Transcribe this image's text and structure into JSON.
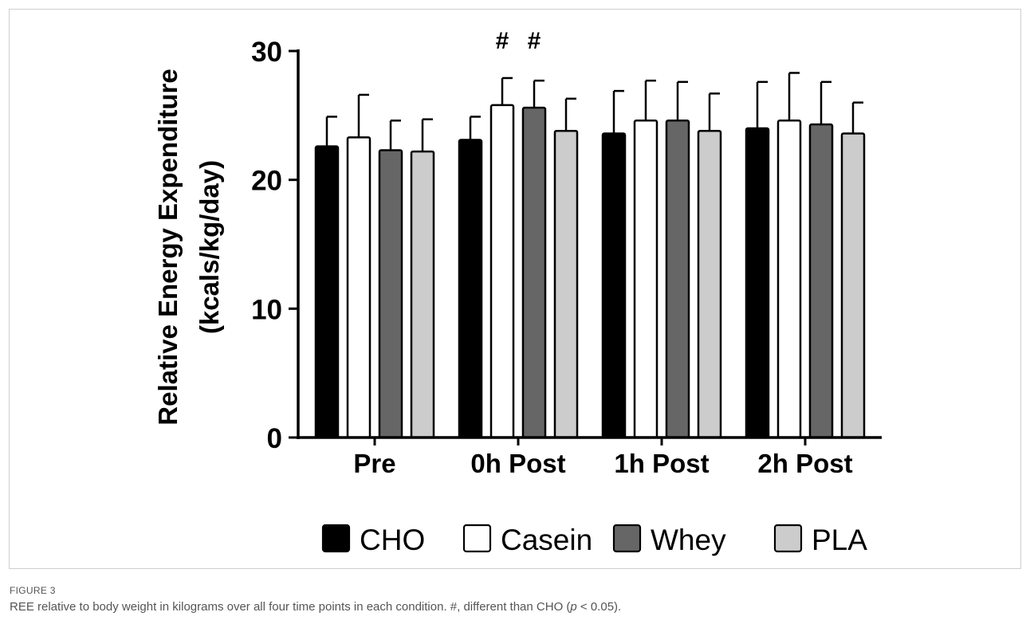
{
  "chart_data": {
    "type": "bar",
    "categories": [
      "Pre",
      "0h Post",
      "1h Post",
      "2h Post"
    ],
    "ylabel_line1": "Relative Energy Expenditure",
    "ylabel_line2": "(kcals/kg/day)",
    "ylim": [
      0,
      30
    ],
    "yticks": [
      0,
      10,
      20,
      30
    ],
    "legend_position": "bottom",
    "grid": false,
    "series": [
      {
        "name": "CHO",
        "values": [
          22.6,
          23.1,
          23.6,
          24.0
        ],
        "errors": [
          2.3,
          1.8,
          3.3,
          3.6
        ],
        "color": "#000000"
      },
      {
        "name": "Casein",
        "values": [
          23.3,
          25.8,
          24.6,
          24.6
        ],
        "errors": [
          3.3,
          2.1,
          3.1,
          3.7
        ],
        "color": "#ffffff"
      },
      {
        "name": "Whey",
        "values": [
          22.3,
          25.6,
          24.6,
          24.3
        ],
        "errors": [
          2.3,
          2.1,
          3.0,
          3.3
        ],
        "color": "#666666"
      },
      {
        "name": "PLA",
        "values": [
          22.2,
          23.8,
          23.8,
          23.6
        ],
        "errors": [
          2.5,
          2.5,
          2.9,
          2.4
        ],
        "color": "#cccccc"
      }
    ],
    "annotations": [
      {
        "text": "#",
        "category": "0h Post",
        "series": "Casein"
      },
      {
        "text": "#",
        "category": "0h Post",
        "series": "Whey"
      }
    ]
  },
  "figure_label": "FIGURE 3",
  "caption_pre": "REE relative to body weight in kilograms over all four time points in each condition. #, different than CHO (",
  "caption_italic": "p",
  "caption_post": " < 0.05)."
}
